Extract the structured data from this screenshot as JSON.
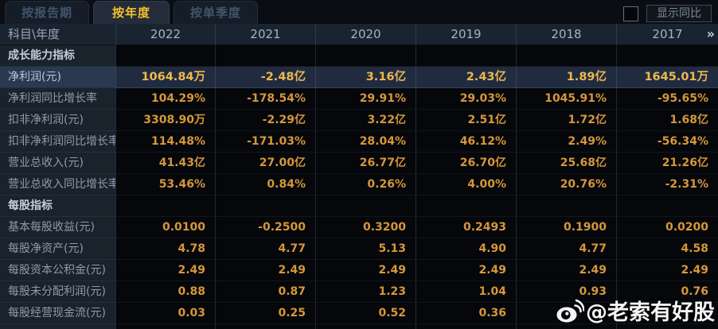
{
  "tabs": [
    {
      "label": "按报告期",
      "active": false
    },
    {
      "label": "按年度",
      "active": true
    },
    {
      "label": "按单季度",
      "active": false
    }
  ],
  "controls": {
    "show_yoy_label": "显示同比",
    "checkbox_checked": false
  },
  "table": {
    "corner_label": "科目\\年度",
    "years": [
      "2022",
      "2021",
      "2020",
      "2019",
      "2018",
      "2017"
    ],
    "more_icon": "»",
    "rows": [
      {
        "type": "section",
        "label": "成长能力指标",
        "values": [
          "",
          "",
          "",
          "",
          "",
          ""
        ]
      },
      {
        "type": "data",
        "highlight": true,
        "label": "净利润(元)",
        "values": [
          "1064.84万",
          "-2.48亿",
          "3.16亿",
          "2.43亿",
          "1.89亿",
          "1645.01万"
        ]
      },
      {
        "type": "data",
        "label": "净利润同比增长率",
        "values": [
          "104.29%",
          "-178.54%",
          "29.91%",
          "29.03%",
          "1045.91%",
          "-95.65%"
        ]
      },
      {
        "type": "data",
        "label": "扣非净利润(元)",
        "values": [
          "3308.90万",
          "-2.29亿",
          "3.22亿",
          "2.51亿",
          "1.72亿",
          "1.68亿"
        ]
      },
      {
        "type": "data",
        "label": "扣非净利润同比增长率",
        "values": [
          "114.48%",
          "-171.03%",
          "28.04%",
          "46.12%",
          "2.49%",
          "-56.34%"
        ]
      },
      {
        "type": "data",
        "label": "营业总收入(元)",
        "values": [
          "41.43亿",
          "27.00亿",
          "26.77亿",
          "26.70亿",
          "25.68亿",
          "21.26亿"
        ]
      },
      {
        "type": "data",
        "label": "营业总收入同比增长率",
        "values": [
          "53.46%",
          "0.84%",
          "0.26%",
          "4.00%",
          "20.76%",
          "-2.31%"
        ]
      },
      {
        "type": "section",
        "label": "每股指标",
        "values": [
          "",
          "",
          "",
          "",
          "",
          ""
        ]
      },
      {
        "type": "data",
        "label": "基本每股收益(元)",
        "values": [
          "0.0100",
          "-0.2500",
          "0.3200",
          "0.2493",
          "0.1900",
          "0.0200"
        ]
      },
      {
        "type": "data",
        "label": "每股净资产(元)",
        "values": [
          "4.78",
          "4.77",
          "5.13",
          "4.90",
          "4.77",
          "4.58"
        ]
      },
      {
        "type": "data",
        "label": "每股资本公积金(元)",
        "values": [
          "2.49",
          "2.49",
          "2.49",
          "2.49",
          "2.49",
          "2.49"
        ]
      },
      {
        "type": "data",
        "label": "每股未分配利润(元)",
        "values": [
          "0.88",
          "0.87",
          "1.23",
          "1.04",
          "0.93",
          "0.76"
        ]
      },
      {
        "type": "data",
        "label": "每股经营现金流(元)",
        "values": [
          "0.03",
          "0.25",
          "0.52",
          "0.36",
          "",
          ""
        ]
      }
    ]
  },
  "watermark": {
    "icon": "weibo-logo",
    "text": "@老索有好股"
  },
  "colors": {
    "background": "#070a0e",
    "tab_active_text": "#f3c22a",
    "value_gold": "#d5973b",
    "highlight_row_bg": "#212b40",
    "highlight_value_gold": "#ecb84e",
    "label_text": "#8d9cab",
    "header_bg": "#1a2430"
  }
}
